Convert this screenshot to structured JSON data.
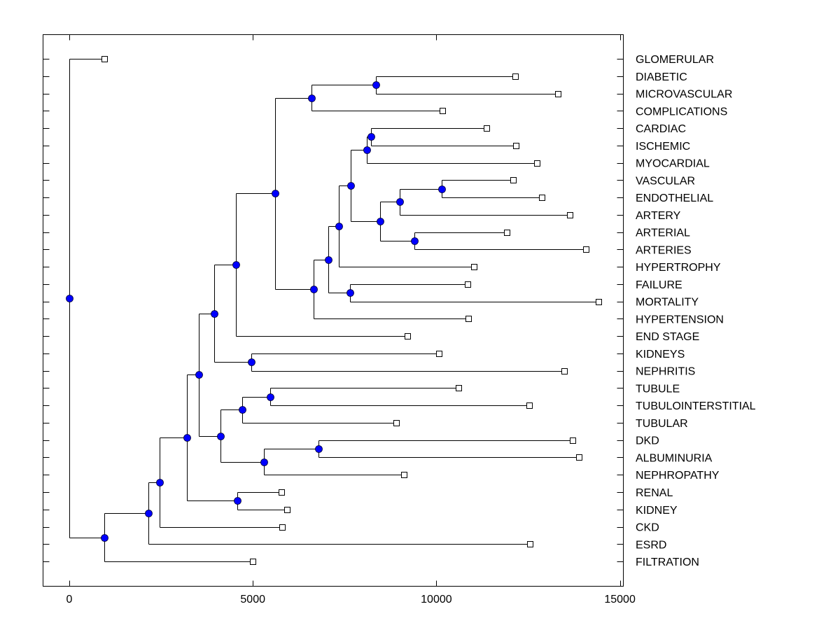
{
  "chart_data": {
    "type": "dendrogram",
    "title": "",
    "xlabel": "",
    "ylabel": "",
    "xlim": [
      -700,
      15150
    ],
    "xticks": [
      0,
      5000,
      10000,
      15000
    ],
    "xtick_labels": [
      "0",
      "5000",
      "10000",
      "15000"
    ],
    "grid": false,
    "leaf_marker": "square",
    "node_marker": "circle",
    "colors": {
      "node_fill": "#0000FF",
      "line": "#000000",
      "leaf_fill": "#FFFFFF"
    },
    "leaves": [
      {
        "id": "GLOMERULAR",
        "label": "GLOMERULAR",
        "dist": 954
      },
      {
        "id": "DIABETIC",
        "label": "DIABETIC",
        "dist": 12150
      },
      {
        "id": "MICROVASCULAR",
        "label": "MICROVASCULAR",
        "dist": 13310
      },
      {
        "id": "COMPLICATIONS",
        "label": "COMPLICATIONS",
        "dist": 10165
      },
      {
        "id": "CARDIAC",
        "label": "CARDIAC",
        "dist": 11370
      },
      {
        "id": "ISCHEMIC",
        "label": "ISCHEMIC",
        "dist": 12170
      },
      {
        "id": "MYOCARDIAL",
        "label": "MYOCARDIAL",
        "dist": 12740
      },
      {
        "id": "VASCULAR",
        "label": "VASCULAR",
        "dist": 12090
      },
      {
        "id": "ENDOTHELIAL",
        "label": "ENDOTHELIAL",
        "dist": 12870
      },
      {
        "id": "ARTERY",
        "label": "ARTERY",
        "dist": 13640
      },
      {
        "id": "ARTERIAL",
        "label": "ARTERIAL",
        "dist": 11920
      },
      {
        "id": "ARTERIES",
        "label": "ARTERIES",
        "dist": 14070
      },
      {
        "id": "HYPERTROPHY",
        "label": "HYPERTROPHY",
        "dist": 11020
      },
      {
        "id": "FAILURE",
        "label": "FAILURE",
        "dist": 10850
      },
      {
        "id": "MORTALITY",
        "label": "MORTALITY",
        "dist": 14417
      },
      {
        "id": "HYPERTENSION",
        "label": "HYPERTENSION",
        "dist": 10870
      },
      {
        "id": "END_STAGE",
        "label": "END STAGE",
        "dist": 9210
      },
      {
        "id": "KIDNEYS",
        "label": "KIDNEYS",
        "dist": 10070
      },
      {
        "id": "NEPHRITIS",
        "label": "NEPHRITIS",
        "dist": 13480
      },
      {
        "id": "TUBULE",
        "label": "TUBULE",
        "dist": 10600
      },
      {
        "id": "TUBULOINTERSTITIAL",
        "label": "TUBULOINTERSTITIAL",
        "dist": 12530
      },
      {
        "id": "TUBULAR",
        "label": "TUBULAR",
        "dist": 8906
      },
      {
        "id": "DKD",
        "label": "DKD",
        "dist": 13710
      },
      {
        "id": "ALBUMINURIA",
        "label": "ALBUMINURIA",
        "dist": 13880
      },
      {
        "id": "NEPHROPATHY",
        "label": "NEPHROPATHY",
        "dist": 9115
      },
      {
        "id": "RENAL",
        "label": "RENAL",
        "dist": 5780
      },
      {
        "id": "KIDNEY",
        "label": "KIDNEY",
        "dist": 5930
      },
      {
        "id": "CKD",
        "label": "CKD",
        "dist": 5797
      },
      {
        "id": "ESRD",
        "label": "ESRD",
        "dist": 12550
      },
      {
        "id": "FILTRATION",
        "label": "FILTRATION",
        "dist": 5000
      }
    ],
    "nodes": [
      {
        "id": "n_root",
        "dist": 0,
        "children": [
          "GLOMERULAR",
          "n_filt"
        ]
      },
      {
        "id": "n_filt",
        "dist": 954,
        "children": [
          "n_esrd",
          "FILTRATION"
        ]
      },
      {
        "id": "n_esrd",
        "dist": 2155,
        "children": [
          "n_ckd",
          "ESRD"
        ]
      },
      {
        "id": "n_ckd",
        "dist": 2460,
        "children": [
          "n_a",
          "CKD"
        ]
      },
      {
        "id": "n_a",
        "dist": 3204,
        "children": [
          "n_b",
          "n_renal"
        ]
      },
      {
        "id": "n_renal",
        "dist": 4577,
        "children": [
          "RENAL",
          "KIDNEY"
        ]
      },
      {
        "id": "n_b",
        "dist": 3528,
        "children": [
          "n_c",
          "n_d"
        ]
      },
      {
        "id": "n_d",
        "dist": 4120,
        "children": [
          "n_e",
          "n_f"
        ]
      },
      {
        "id": "n_e",
        "dist": 4710,
        "children": [
          "n_tub",
          "TUBULAR"
        ]
      },
      {
        "id": "n_tub",
        "dist": 5473,
        "children": [
          "TUBULE",
          "TUBULOINTERSTITIAL"
        ]
      },
      {
        "id": "n_f",
        "dist": 5300,
        "children": [
          "n_dkd",
          "NEPHROPATHY"
        ]
      },
      {
        "id": "n_dkd",
        "dist": 6789,
        "children": [
          "DKD",
          "ALBUMINURIA"
        ]
      },
      {
        "id": "n_c",
        "dist": 3948,
        "children": [
          "n_g",
          "n_kid"
        ]
      },
      {
        "id": "n_kid",
        "dist": 4958,
        "children": [
          "KIDNEYS",
          "NEPHRITIS"
        ]
      },
      {
        "id": "n_g",
        "dist": 4540,
        "children": [
          "n_h",
          "END_STAGE"
        ]
      },
      {
        "id": "n_h",
        "dist": 5606,
        "children": [
          "n_dia",
          "n_fail"
        ]
      },
      {
        "id": "n_dia",
        "dist": 6598,
        "children": [
          "n_dm",
          "COMPLICATIONS"
        ]
      },
      {
        "id": "n_dm",
        "dist": 8353,
        "children": [
          "DIABETIC",
          "MICROVASCULAR"
        ]
      },
      {
        "id": "n_fail",
        "dist": 6655,
        "children": [
          "n_i",
          "HYPERTENSION"
        ]
      },
      {
        "id": "n_i",
        "dist": 7056,
        "children": [
          "n_j",
          "n_mort"
        ]
      },
      {
        "id": "n_mort",
        "dist": 7647,
        "children": [
          "FAILURE",
          "MORTALITY"
        ]
      },
      {
        "id": "n_j",
        "dist": 7342,
        "children": [
          "n_k",
          "HYPERTROPHY"
        ]
      },
      {
        "id": "n_k",
        "dist": 7666,
        "children": [
          "n_card",
          "n_l"
        ]
      },
      {
        "id": "n_card",
        "dist": 8105,
        "children": [
          "n_c2",
          "MYOCARDIAL"
        ]
      },
      {
        "id": "n_c2",
        "dist": 8219,
        "children": [
          "CARDIAC",
          "ISCHEMIC"
        ]
      },
      {
        "id": "n_l",
        "dist": 8467,
        "children": [
          "n_vasc",
          "n_art"
        ]
      },
      {
        "id": "n_vasc",
        "dist": 9000,
        "children": [
          "n_ve",
          "ARTERY"
        ]
      },
      {
        "id": "n_ve",
        "dist": 10145,
        "children": [
          "VASCULAR",
          "ENDOTHELIAL"
        ]
      },
      {
        "id": "n_art",
        "dist": 9400,
        "children": [
          "ARTERIAL",
          "ARTERIES"
        ]
      }
    ]
  }
}
